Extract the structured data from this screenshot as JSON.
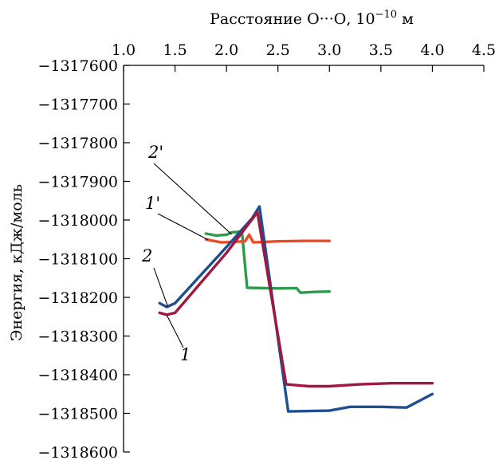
{
  "chart_data": {
    "type": "line",
    "xlabel": {
      "main": "Расстояние О···О, 10",
      "exp": "−10",
      "unit": " м"
    },
    "ylabel": "Энергия, кДж/моль",
    "x_axis_position": "top",
    "xlim": [
      1.0,
      4.5
    ],
    "ylim": [
      -1318600,
      -1317600
    ],
    "x_ticks": [
      "1.0",
      "1.5",
      "2.0",
      "2.5",
      "3.0",
      "3.5",
      "4.0",
      "4.5"
    ],
    "y_ticks": [
      "−1317600",
      "−1317700",
      "−1317800",
      "−1317900",
      "−1318000",
      "−1318100",
      "−1318200",
      "−1318300",
      "−1318400",
      "−1318500",
      "−1318600"
    ],
    "grid": false,
    "series": [
      {
        "name": "2",
        "color": "#1d4f91",
        "points": [
          [
            1.35,
            -1318215
          ],
          [
            1.42,
            -1318225
          ],
          [
            1.5,
            -1318215
          ],
          [
            2.0,
            -1318070
          ],
          [
            2.25,
            -1317995
          ],
          [
            2.32,
            -1317965
          ],
          [
            2.6,
            -1318495
          ],
          [
            3.0,
            -1318493
          ],
          [
            3.2,
            -1318483
          ],
          [
            3.5,
            -1318483
          ],
          [
            3.75,
            -1318485
          ],
          [
            4.0,
            -1318450
          ]
        ]
      },
      {
        "name": "1",
        "color": "#a0183f",
        "points": [
          [
            1.35,
            -1318240
          ],
          [
            1.42,
            -1318245
          ],
          [
            1.5,
            -1318240
          ],
          [
            2.0,
            -1318085
          ],
          [
            2.3,
            -1317980
          ],
          [
            2.58,
            -1318425
          ],
          [
            2.8,
            -1318430
          ],
          [
            3.0,
            -1318430
          ],
          [
            3.3,
            -1318425
          ],
          [
            3.6,
            -1318422
          ],
          [
            4.0,
            -1318422
          ]
        ]
      },
      {
        "name": "2'",
        "color": "#2e9a4c",
        "points": [
          [
            1.8,
            -1318035
          ],
          [
            1.9,
            -1318040
          ],
          [
            2.0,
            -1318038
          ],
          [
            2.05,
            -1318032
          ],
          [
            2.15,
            -1318030
          ],
          [
            2.2,
            -1318175
          ],
          [
            2.5,
            -1318177
          ],
          [
            2.68,
            -1318176
          ],
          [
            2.72,
            -1318188
          ],
          [
            2.85,
            -1318186
          ],
          [
            3.0,
            -1318185
          ]
        ]
      },
      {
        "name": "1'",
        "color": "#ef4a23",
        "points": [
          [
            1.8,
            -1318050
          ],
          [
            1.95,
            -1318058
          ],
          [
            2.1,
            -1318056
          ],
          [
            2.18,
            -1318055
          ],
          [
            2.22,
            -1318038
          ],
          [
            2.26,
            -1318058
          ],
          [
            2.5,
            -1318055
          ],
          [
            2.75,
            -1318054
          ],
          [
            3.0,
            -1318054
          ]
        ]
      }
    ],
    "annotations": [
      {
        "text": "2'",
        "series": "2'",
        "anchor": [
          2.05,
          -1318037
        ]
      },
      {
        "text": "1'",
        "series": "1'",
        "anchor": [
          1.82,
          -1318051
        ]
      },
      {
        "text": "2",
        "series": "2",
        "anchor": [
          1.43,
          -1318224
        ]
      },
      {
        "text": "1",
        "series": "1",
        "anchor": [
          1.42,
          -1318246
        ]
      }
    ]
  }
}
